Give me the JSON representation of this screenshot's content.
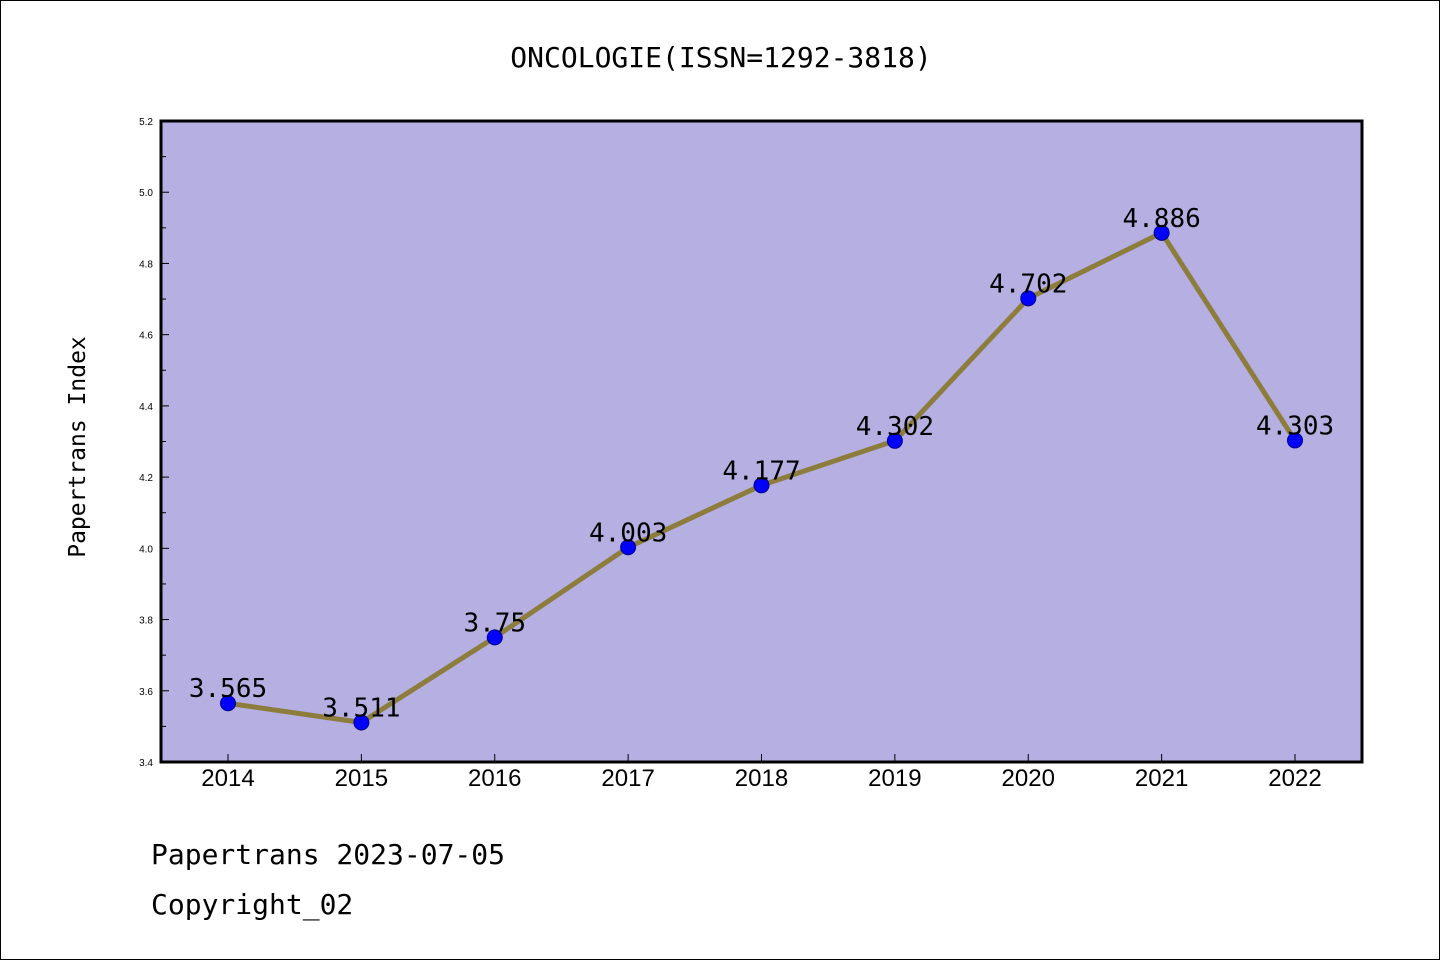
{
  "footer": {
    "line1": "Papertrans 2023-07-05",
    "line2": "Copyright_02"
  },
  "colors": {
    "plot_background": "#b5afe2",
    "line": "#8c7d3c",
    "marker": "#0000ff",
    "marker_edge": "#00008b"
  },
  "chart_data": {
    "type": "line",
    "title": "ONCOLOGIE(ISSN=1292-3818)",
    "xlabel": "",
    "ylabel": "Papertrans Index",
    "categories": [
      "2014",
      "2015",
      "2016",
      "2017",
      "2018",
      "2019",
      "2020",
      "2021",
      "2022"
    ],
    "series": [
      {
        "values": [
          3.565,
          3.511,
          3.75,
          4.003,
          4.177,
          4.302,
          4.702,
          4.886,
          4.303
        ],
        "labels": [
          "3.565",
          "3.511",
          "3.75",
          "4.003",
          "4.177",
          "4.302",
          "4.702",
          "4.886",
          "4.303"
        ]
      }
    ],
    "ylim": [
      3.4,
      5.2
    ],
    "yticks": [
      "3.4",
      "3.6",
      "3.8",
      "4.0",
      "4.2",
      "4.4",
      "4.6",
      "4.8",
      "5.0",
      "5.2"
    ],
    "grid": false,
    "legend": "none"
  }
}
